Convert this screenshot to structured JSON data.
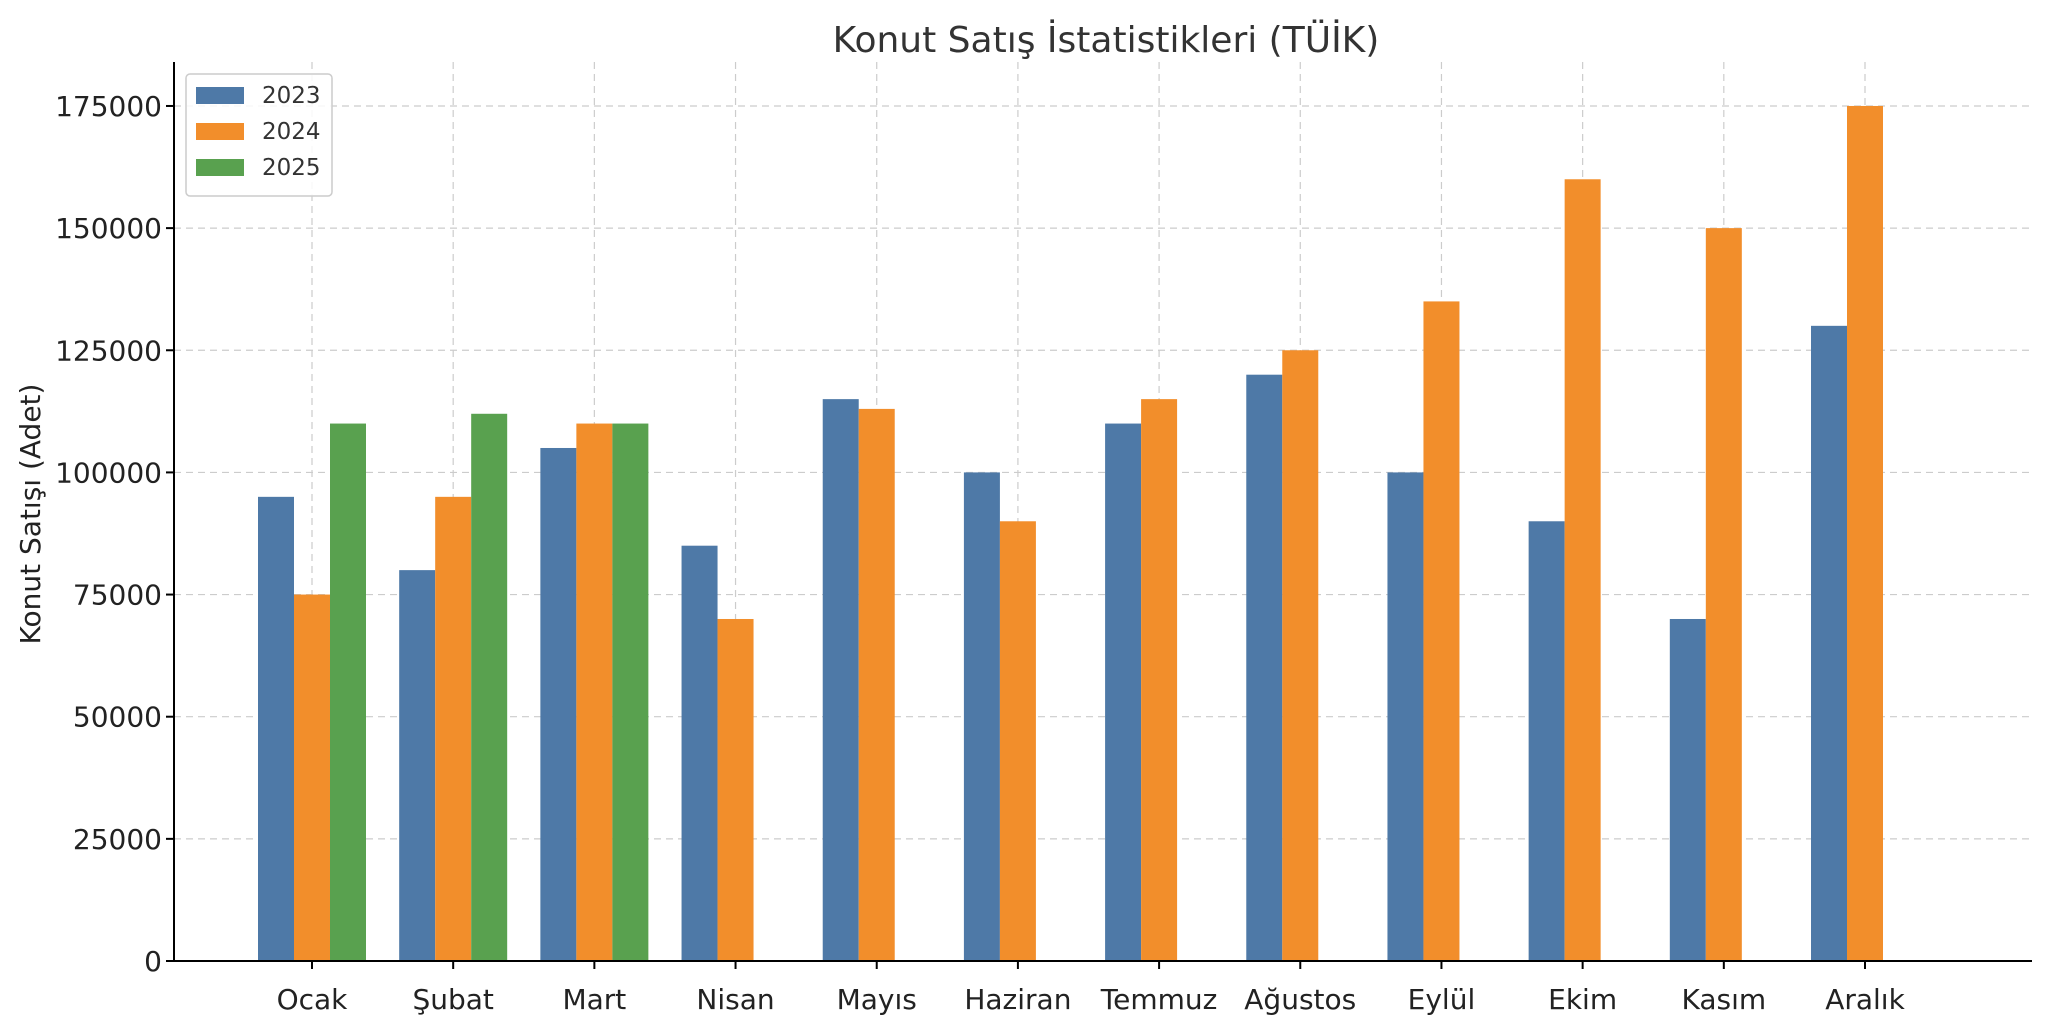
{
  "chart_data": {
    "type": "bar",
    "title": "Konut Satış İstatistikleri (TÜİK)",
    "xlabel": "",
    "ylabel": "Konut Satışı (Adet)",
    "categories": [
      "Ocak",
      "Şubat",
      "Mart",
      "Nisan",
      "Mayıs",
      "Haziran",
      "Temmuz",
      "Ağustos",
      "Eylül",
      "Ekim",
      "Kasım",
      "Aralık"
    ],
    "series": [
      {
        "name": "2023",
        "color": "#4e79a7",
        "values": [
          95000,
          80000,
          105000,
          85000,
          115000,
          100000,
          110000,
          120000,
          100000,
          90000,
          70000,
          130000
        ]
      },
      {
        "name": "2024",
        "color": "#f28e2b",
        "values": [
          75000,
          95000,
          110000,
          70000,
          113000,
          90000,
          115000,
          125000,
          135000,
          160000,
          150000,
          175000
        ]
      },
      {
        "name": "2025",
        "color": "#59a14f",
        "values": [
          110000,
          112000,
          110000,
          null,
          null,
          null,
          null,
          null,
          null,
          null,
          null,
          null
        ]
      }
    ],
    "ylim": [
      0,
      184000
    ],
    "yticks": [
      0,
      25000,
      50000,
      75000,
      100000,
      125000,
      150000,
      175000
    ],
    "grid": true,
    "legend_position": "top-left"
  }
}
